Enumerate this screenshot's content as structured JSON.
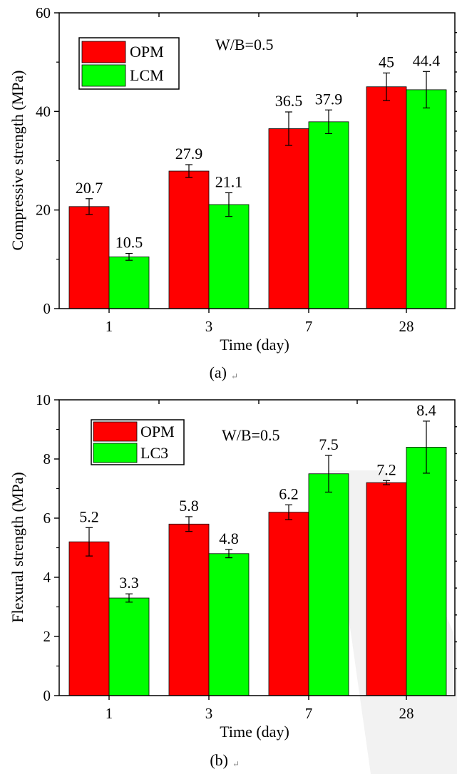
{
  "colors": {
    "opm": "#ff0000",
    "second": "#00ff00",
    "overlay": "#f2f2f2"
  },
  "chart_data": [
    {
      "type": "bar",
      "categories": [
        "1",
        "3",
        "7",
        "28"
      ],
      "series": [
        {
          "name": "OPM",
          "values": [
            20.7,
            27.9,
            36.5,
            45
          ],
          "errors": [
            1.6,
            1.3,
            3.4,
            2.8
          ],
          "labels": [
            "20.7",
            "27.9",
            "36.5",
            "45"
          ]
        },
        {
          "name": "LCM",
          "values": [
            10.5,
            21.1,
            37.9,
            44.4
          ],
          "errors": [
            0.7,
            2.4,
            2.4,
            3.7
          ],
          "labels": [
            "10.5",
            "21.1",
            "37.9",
            "44.4"
          ]
        }
      ],
      "xlabel": "Time (day)",
      "ylabel": "Compressive strength (MPa)",
      "ylim": [
        0,
        60
      ],
      "yticks": [
        "0",
        "20",
        "40",
        "60"
      ],
      "minor_step": 10,
      "annotation": "W/B=0.5",
      "caption": "(a)",
      "legend_position": "top-left",
      "right_axis_ticks": 14
    },
    {
      "type": "bar",
      "categories": [
        "1",
        "3",
        "7",
        "28"
      ],
      "series": [
        {
          "name": "OPM",
          "values": [
            5.2,
            5.8,
            6.2,
            7.2
          ],
          "errors": [
            0.48,
            0.25,
            0.25,
            0.07
          ],
          "labels": [
            "5.2",
            "5.8",
            "6.2",
            "7.2"
          ]
        },
        {
          "name": "LC3",
          "values": [
            3.3,
            4.8,
            7.5,
            8.4
          ],
          "errors": [
            0.14,
            0.14,
            0.62,
            0.88
          ],
          "labels": [
            "3.3",
            "4.8",
            "7.5",
            "8.4"
          ]
        }
      ],
      "xlabel": "Time (day)",
      "ylabel": "Flexural strength (MPa)",
      "ylim": [
        0,
        10
      ],
      "yticks": [
        "0",
        "2",
        "4",
        "6",
        "8",
        "10"
      ],
      "minor_step": 1,
      "annotation": "W/B=0.5",
      "caption": "(b)",
      "legend_position": "top-left",
      "right_axis_ticks": 10
    }
  ]
}
